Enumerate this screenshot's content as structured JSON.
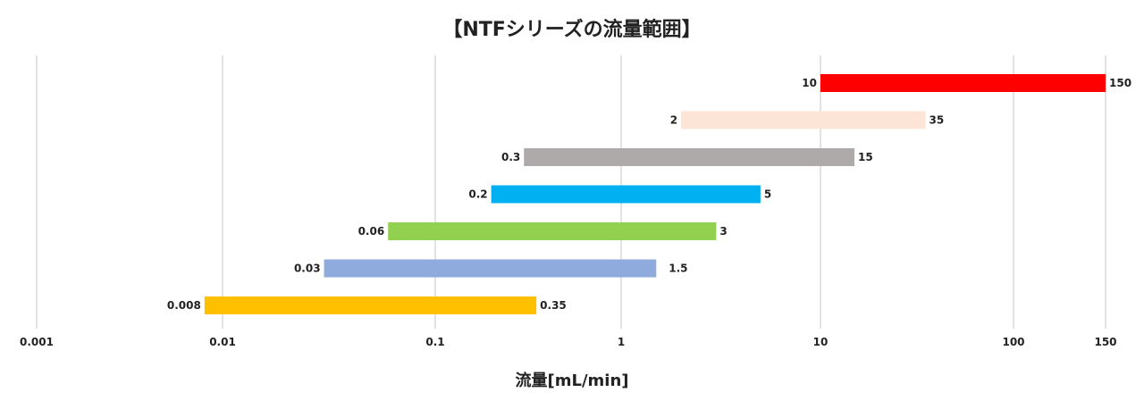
{
  "chart_data": {
    "type": "bar",
    "orientation": "horizontal-range",
    "title": "【NTFシリーズの流量範囲】",
    "xlabel": "流量[mL/min]",
    "xscale": "log",
    "xlim": [
      0.001,
      150
    ],
    "xticks": [
      {
        "value": 0.001,
        "label": "0.001"
      },
      {
        "value": 0.01,
        "label": "0.01"
      },
      {
        "value": 0.1,
        "label": "0.1"
      },
      {
        "value": 1,
        "label": "1"
      },
      {
        "value": 10,
        "label": "10"
      },
      {
        "value": 100,
        "label": "100"
      },
      {
        "value": 150,
        "label": "150"
      }
    ],
    "grid": true,
    "legend": "none",
    "ranges": [
      {
        "min": 10,
        "max": 150,
        "min_label": "10",
        "max_label": "150",
        "color": "#ff0000"
      },
      {
        "min": 2,
        "max": 35,
        "min_label": "2",
        "max_label": "35",
        "color": "#fce4d6"
      },
      {
        "min": 0.3,
        "max": 15,
        "min_label": "0.3",
        "max_label": "15",
        "color": "#aeaaaa"
      },
      {
        "min": 0.2,
        "max": 5,
        "min_label": "0.2",
        "max_label": "5",
        "color": "#00b0f0"
      },
      {
        "min": 0.06,
        "max": 3,
        "min_label": "0.06",
        "max_label": "3",
        "color": "#92d050"
      },
      {
        "min": 0.03,
        "max": 1.5,
        "min_label": "0.03",
        "max_label": "1.5",
        "color": "#8faadc"
      },
      {
        "min": 0.008,
        "max": 0.35,
        "min_label": "0.008",
        "max_label": "0.35",
        "color": "#ffc000"
      }
    ]
  }
}
